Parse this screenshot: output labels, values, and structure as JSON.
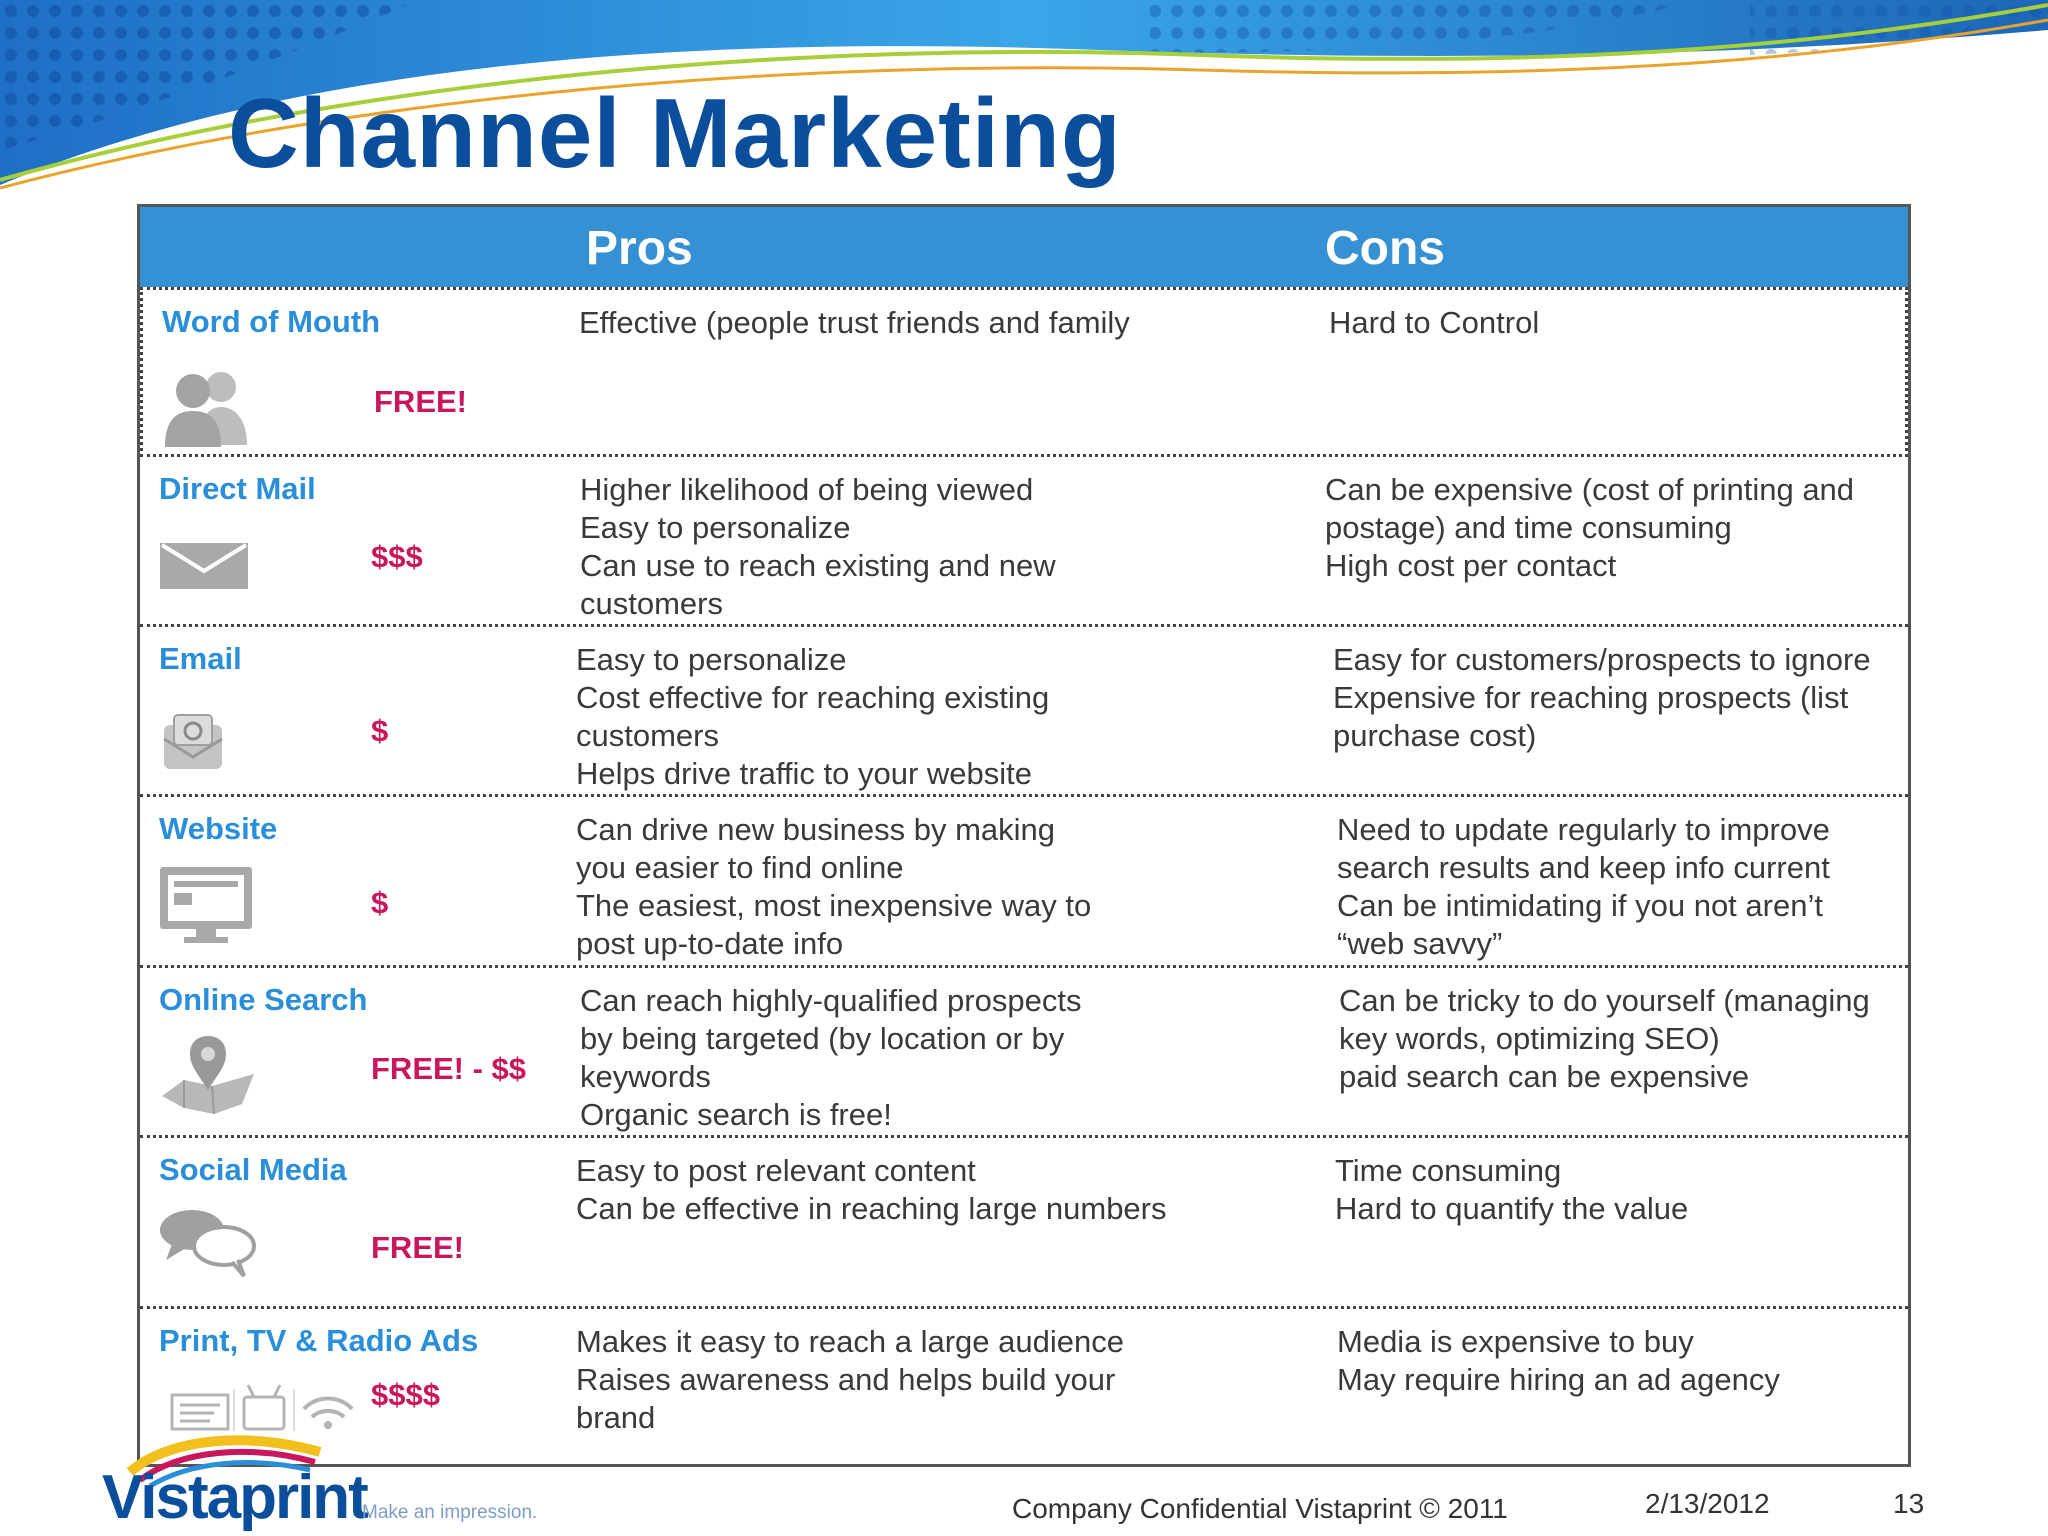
{
  "slide": {
    "title": "Channel Marketing",
    "header": {
      "pros": "Pros",
      "cons": "Cons"
    },
    "rows": [
      {
        "channel": "Word of Mouth",
        "cost": "FREE!",
        "icon": "people-icon",
        "pros": [
          "Effective (people trust friends and family"
        ],
        "cons": [
          "Hard to Control"
        ]
      },
      {
        "channel": "Direct Mail",
        "cost": "$$$",
        "icon": "envelope-icon",
        "pros": [
          "Higher likelihood of being viewed",
          "Easy to personalize",
          "Can use to reach existing and new customers"
        ],
        "cons": [
          "Can be expensive (cost of printing and postage) and time consuming",
          "High cost per contact"
        ]
      },
      {
        "channel": "Email",
        "cost": "$",
        "icon": "email-icon",
        "pros": [
          "Easy to personalize",
          "Cost effective for reaching existing customers",
          "Helps drive traffic to your website"
        ],
        "cons": [
          "Easy for customers/prospects to ignore",
          "Expensive for reaching prospects (list purchase cost)"
        ]
      },
      {
        "channel": "Website",
        "cost": "$",
        "icon": "monitor-icon",
        "pros": [
          "Can drive new business by making you easier to find online",
          "The easiest, most inexpensive way to post up-to-date info"
        ],
        "cons": [
          "Need to update regularly to improve search results and keep info current",
          "Can be intimidating if you not aren’t “web savvy”"
        ]
      },
      {
        "channel": "Online Search",
        "cost": "FREE! - $$",
        "icon": "map-pin-icon",
        "pros": [
          "Can reach highly-qualified prospects by being targeted (by location or by keywords",
          "Organic search is free!"
        ],
        "cons": [
          "Can be tricky to do yourself (managing key words, optimizing SEO)",
          "paid search can be expensive"
        ]
      },
      {
        "channel": "Social Media",
        "cost": "FREE!",
        "icon": "chat-bubbles-icon",
        "pros": [
          "Easy to post relevant content",
          "Can be effective in reaching large numbers"
        ],
        "cons": [
          "Time consuming",
          "Hard to quantify the value"
        ]
      },
      {
        "channel": "Print, TV & Radio Ads",
        "cost": "$$$$",
        "icon": "media-icons",
        "pros": [
          "Makes it easy to reach a large audience",
          "Raises awareness and helps build your brand"
        ],
        "cons": [
          "Media is expensive to buy",
          "May require hiring an ad agency"
        ]
      }
    ]
  },
  "footer": {
    "confidential": "Company Confidential Vistaprint © 2011",
    "date": "2/13/2012",
    "page": "13",
    "logo_name": "Vistaprint",
    "logo_tagline": "Make an impression."
  },
  "colors": {
    "title": "#0b4f9c",
    "header_bar": "#3591d4",
    "channel_text": "#2a8fd8",
    "cost_text": "#c8175d"
  }
}
